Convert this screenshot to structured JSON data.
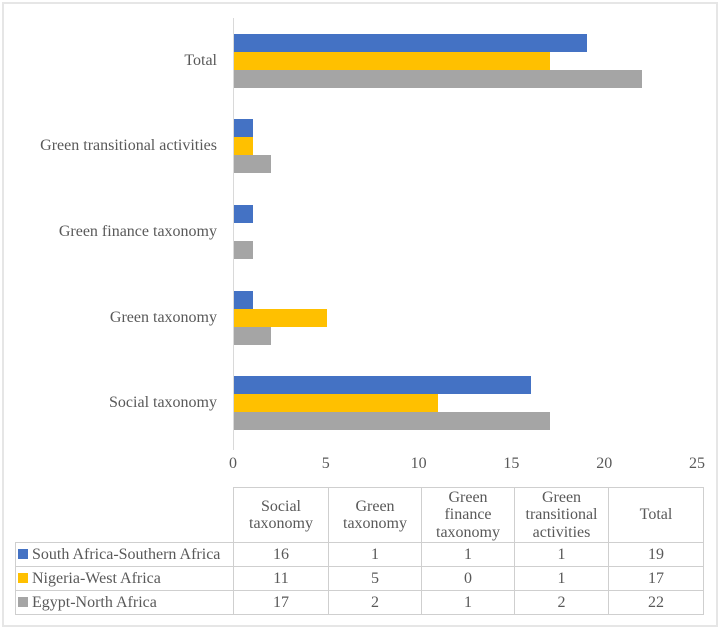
{
  "chart_data": {
    "type": "bar",
    "orientation": "horizontal",
    "title": "",
    "xlabel": "",
    "ylabel": "",
    "grid": false,
    "legend_position": "none (legend shown as table below chart)",
    "xlim": [
      0,
      25
    ],
    "xticks": [
      "0",
      "5",
      "10",
      "15",
      "20",
      "25"
    ],
    "axis_color": "#d9d9d9",
    "categories_top_to_bottom": [
      "Total",
      "Green transitional activities",
      "Green finance taxonomy",
      "Green taxonomy",
      "Social taxonomy"
    ],
    "series": [
      {
        "name": "South Africa-Southern Africa",
        "color": "#4472C4",
        "values": [
          19,
          1,
          1,
          1,
          16
        ]
      },
      {
        "name": "Nigeria-West Africa",
        "color": "#FFC000",
        "values": [
          17,
          1,
          0,
          5,
          11
        ]
      },
      {
        "name": "Egypt-North Africa",
        "color": "#A5A5A5",
        "values": [
          22,
          2,
          1,
          2,
          17
        ]
      }
    ]
  },
  "table": {
    "headers": [
      "",
      "Social taxonomy",
      "Green taxonomy",
      "Green finance taxonomy",
      "Green transitional activities",
      "Total"
    ],
    "rows": [
      {
        "label": "South Africa-Southern Africa",
        "swatch_color": "#4472C4",
        "values": [
          "16",
          "1",
          "1",
          "1",
          "19"
        ]
      },
      {
        "label": "Nigeria-West Africa",
        "swatch_color": "#FFC000",
        "values": [
          "11",
          "5",
          "0",
          "1",
          "17"
        ]
      },
      {
        "label": "Egypt-North Africa",
        "swatch_color": "#A5A5A5",
        "values": [
          "17",
          "2",
          "1",
          "2",
          "22"
        ]
      }
    ]
  },
  "colors": {
    "text": "#595959",
    "table_border": "#cfcfcf",
    "figure_border": "#e6e6e6"
  }
}
